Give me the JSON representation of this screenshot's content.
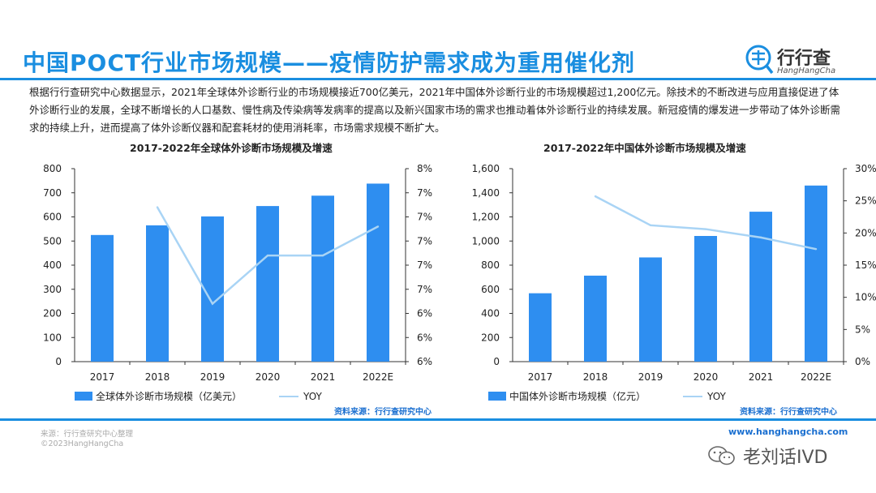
{
  "header": {
    "title": "中国POCT行业市场规模——疫情防护需求成为重用催化剂",
    "logo_text": "行行查",
    "logo_sub": "HangHangCha"
  },
  "intro": "根据行行查研究中心数据显示，2021年全球体外诊断行业的市场规模接近700亿美元，2021年中国体外诊断行业的市场规模超过1,200亿元。除技术的不断改进与应用直接促进了体外诊断行业的发展，全球不断增长的人口基数、慢性病及传染病等发病率的提高以及新兴国家市场的需求也推动着体外诊断行业的持续发展。新冠疫情的爆发进一步带动了体外诊断需求的持续上升，进而提高了体外诊断仪器和配套耗材的使用消耗率，市场需求规模不断扩大。",
  "chart_data": [
    {
      "type": "bar",
      "title": "2017-2022年全球体外诊断市场规模及增速",
      "categories": [
        "2017",
        "2018",
        "2019",
        "2020",
        "2021",
        "2022E"
      ],
      "series": [
        {
          "name": "全球体外诊断市场规模（亿美元）",
          "type": "bar",
          "axis": "left",
          "values": [
            525,
            565,
            602,
            645,
            688,
            738
          ]
        },
        {
          "name": "YOY",
          "type": "line",
          "axis": "right",
          "values": [
            null,
            7.6,
            6.6,
            7.1,
            7.1,
            7.4
          ]
        }
      ],
      "left_axis": {
        "min": 0,
        "max": 800,
        "step": 100,
        "ticks": [
          "0",
          "100",
          "200",
          "300",
          "400",
          "500",
          "600",
          "700",
          "800"
        ]
      },
      "right_axis": {
        "min": 6.0,
        "max": 8.0,
        "ticks": [
          "6%",
          "6%",
          "6%",
          "7%",
          "7%",
          "7%",
          "7%",
          "7%",
          "8%"
        ]
      },
      "legend": [
        "全球体外诊断市场规模（亿美元）",
        "YOY"
      ],
      "source": "资料来源：行行查研究中心"
    },
    {
      "type": "bar",
      "title": "2017-2022年中国体外诊断市场规模及增速",
      "categories": [
        "2017",
        "2018",
        "2019",
        "2020",
        "2021",
        "2022E"
      ],
      "series": [
        {
          "name": "中国体外诊断市场规模（亿元）",
          "type": "bar",
          "axis": "left",
          "values": [
            567,
            713,
            864,
            1042,
            1243,
            1460
          ]
        },
        {
          "name": "YOY",
          "type": "line",
          "axis": "right",
          "values": [
            null,
            25.7,
            21.2,
            20.6,
            19.3,
            17.5
          ]
        }
      ],
      "left_axis": {
        "min": 0,
        "max": 1600,
        "step": 200,
        "ticks": [
          "0",
          "200",
          "400",
          "600",
          "800",
          "1,000",
          "1,200",
          "1,400",
          "1,600"
        ]
      },
      "right_axis": {
        "min": 0,
        "max": 30,
        "ticks": [
          "0%",
          "5%",
          "10%",
          "15%",
          "20%",
          "25%",
          "30%"
        ]
      },
      "legend": [
        "中国体外诊断市场规模（亿元）",
        "YOY"
      ],
      "source": "资料来源：行行查研究中心"
    }
  ],
  "footer": {
    "note": "来源：行行查研究中心整理",
    "copyright": "©2023HangHangCha",
    "website": "www.hanghangcha.com",
    "watermark": "老刘话IVD"
  },
  "colors": {
    "accent": "#1a8ee0",
    "bar": "#2e8ef0",
    "line": "#a9d4f5"
  }
}
